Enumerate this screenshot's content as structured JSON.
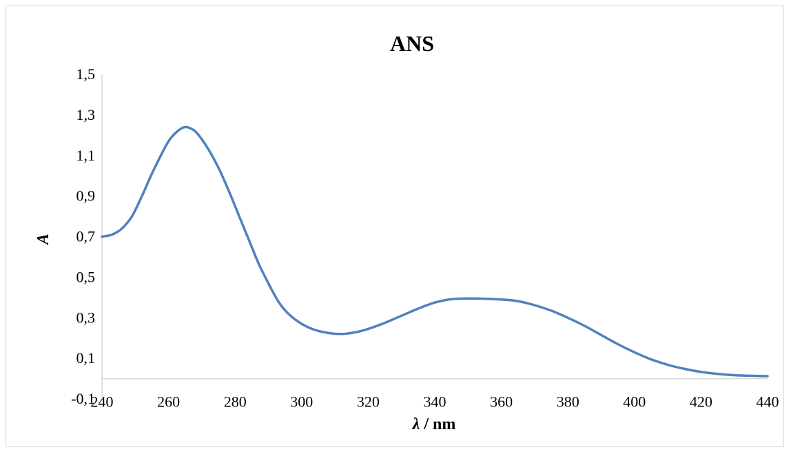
{
  "chart_data": {
    "type": "line",
    "title": "ANS",
    "xlabel_symbol": "λ",
    "xlabel_unit": " / nm",
    "ylabel": "A",
    "xlim": [
      240,
      440
    ],
    "ylim": [
      -0.1,
      1.5
    ],
    "x_ticks": [
      "240",
      "260",
      "280",
      "300",
      "320",
      "340",
      "360",
      "380",
      "400",
      "420",
      "440"
    ],
    "x_tick_values": [
      240,
      260,
      280,
      300,
      320,
      340,
      360,
      380,
      400,
      420,
      440
    ],
    "y_ticks": [
      "-0,1",
      "0,1",
      "0,3",
      "0,5",
      "0,7",
      "0,9",
      "1,1",
      "1,3",
      "1,5"
    ],
    "y_tick_values": [
      -0.1,
      0.1,
      0.3,
      0.5,
      0.7,
      0.9,
      1.1,
      1.3,
      1.5
    ],
    "grid": false,
    "legend": "none",
    "series": [
      {
        "color": "#4f81bd",
        "x": [
          240,
          243,
          246,
          249,
          252,
          255,
          258,
          260,
          262,
          264,
          265,
          266,
          268,
          270,
          272,
          275,
          278,
          281,
          284,
          287,
          290,
          293,
          296,
          300,
          304,
          308,
          312,
          316,
          320,
          325,
          330,
          335,
          340,
          345,
          350,
          355,
          360,
          365,
          370,
          375,
          380,
          385,
          390,
          395,
          400,
          405,
          410,
          415,
          420,
          425,
          430,
          435,
          440
        ],
        "y": [
          0.7,
          0.71,
          0.74,
          0.8,
          0.9,
          1.01,
          1.11,
          1.17,
          1.21,
          1.235,
          1.24,
          1.238,
          1.22,
          1.18,
          1.13,
          1.04,
          0.93,
          0.81,
          0.69,
          0.57,
          0.47,
          0.38,
          0.32,
          0.27,
          0.24,
          0.225,
          0.22,
          0.228,
          0.245,
          0.275,
          0.31,
          0.345,
          0.375,
          0.392,
          0.395,
          0.394,
          0.39,
          0.382,
          0.362,
          0.335,
          0.3,
          0.26,
          0.215,
          0.17,
          0.13,
          0.095,
          0.068,
          0.048,
          0.033,
          0.023,
          0.017,
          0.014,
          0.012
        ]
      }
    ]
  }
}
